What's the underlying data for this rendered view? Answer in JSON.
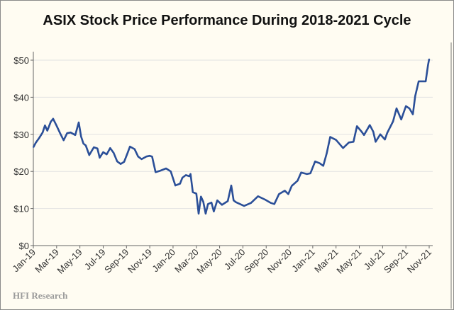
{
  "chart_data": {
    "type": "line",
    "title": "ASIX Stock Price Performance During 2018-2021 Cycle",
    "xlabel": "",
    "ylabel": "",
    "ylim": [
      0,
      50
    ],
    "yticks": [
      "$0",
      "$10",
      "$20",
      "$30",
      "$40",
      "$50"
    ],
    "ytick_values": [
      0,
      10,
      20,
      30,
      40,
      50
    ],
    "xticks": [
      "Jan-19",
      "Mar-19",
      "May-19",
      "Jul-19",
      "Sep-19",
      "Nov-19",
      "Jan-20",
      "Mar-20",
      "May-20",
      "Jul-20",
      "Sep-20",
      "Nov-20",
      "Jan-21",
      "Mar-21",
      "May-21",
      "Jul-21",
      "Sep-21",
      "Nov-21"
    ],
    "x_unit": "months since Jan-19",
    "xlim": [
      0,
      34
    ],
    "grid": "horizontal",
    "legend": "none",
    "series": [
      {
        "name": "ASIX",
        "color": "#2b4f98",
        "points": [
          [
            0,
            26.5
          ],
          [
            0.2,
            27.7
          ],
          [
            0.5,
            29
          ],
          [
            0.8,
            30.5
          ],
          [
            1.0,
            32.4
          ],
          [
            1.2,
            31
          ],
          [
            1.5,
            33.4
          ],
          [
            1.7,
            34.2
          ],
          [
            2.0,
            32.3
          ],
          [
            2.3,
            30.3
          ],
          [
            2.6,
            28.4
          ],
          [
            2.9,
            30.3
          ],
          [
            3.2,
            30.5
          ],
          [
            3.6,
            29.8
          ],
          [
            3.9,
            33.2
          ],
          [
            4.1,
            29.4
          ],
          [
            4.3,
            27.5
          ],
          [
            4.5,
            27
          ],
          [
            4.8,
            24.4
          ],
          [
            5.2,
            26.5
          ],
          [
            5.5,
            26.2
          ],
          [
            5.7,
            23.7
          ],
          [
            6.0,
            25.2
          ],
          [
            6.3,
            24.6
          ],
          [
            6.6,
            26.3
          ],
          [
            6.9,
            25
          ],
          [
            7.2,
            22.7
          ],
          [
            7.5,
            22
          ],
          [
            7.8,
            22.6
          ],
          [
            8.1,
            25
          ],
          [
            8.3,
            26.7
          ],
          [
            8.7,
            26
          ],
          [
            9.0,
            24
          ],
          [
            9.3,
            23.3
          ],
          [
            9.7,
            24
          ],
          [
            10.0,
            24.2
          ],
          [
            10.2,
            24
          ],
          [
            10.5,
            19.8
          ],
          [
            10.9,
            20.2
          ],
          [
            11.4,
            20.8
          ],
          [
            11.8,
            20
          ],
          [
            12.2,
            16.2
          ],
          [
            12.6,
            16.7
          ],
          [
            12.8,
            18.3
          ],
          [
            13.1,
            19
          ],
          [
            13.4,
            18.7
          ],
          [
            13.5,
            19.3
          ],
          [
            13.7,
            14.4
          ],
          [
            14.0,
            14
          ],
          [
            14.2,
            8.6
          ],
          [
            14.4,
            13.2
          ],
          [
            14.6,
            11.8
          ],
          [
            14.8,
            8.6
          ],
          [
            15.0,
            11.2
          ],
          [
            15.3,
            11.6
          ],
          [
            15.5,
            9.2
          ],
          [
            15.8,
            12.2
          ],
          [
            16.2,
            11
          ],
          [
            16.7,
            12
          ],
          [
            17.0,
            16.2
          ],
          [
            17.2,
            12.2
          ],
          [
            17.4,
            11.7
          ],
          [
            18.1,
            10.7
          ],
          [
            18.7,
            11.5
          ],
          [
            19.3,
            13.3
          ],
          [
            19.9,
            12.4
          ],
          [
            20.4,
            11.5
          ],
          [
            20.7,
            11.2
          ],
          [
            21.1,
            13.9
          ],
          [
            21.6,
            14.8
          ],
          [
            21.9,
            13.9
          ],
          [
            22.2,
            16.1
          ],
          [
            22.7,
            17.5
          ],
          [
            23.0,
            19.7
          ],
          [
            23.5,
            19.3
          ],
          [
            23.8,
            19.5
          ],
          [
            24.2,
            22.7
          ],
          [
            24.6,
            22.2
          ],
          [
            24.9,
            21.5
          ],
          [
            25.2,
            24.9
          ],
          [
            25.5,
            29.3
          ],
          [
            26.0,
            28.5
          ],
          [
            26.6,
            26.3
          ],
          [
            27.1,
            27.8
          ],
          [
            27.5,
            28
          ],
          [
            27.8,
            32.2
          ],
          [
            28.2,
            30.7
          ],
          [
            28.4,
            29.8
          ],
          [
            28.9,
            32.5
          ],
          [
            29.2,
            30.7
          ],
          [
            29.4,
            28
          ],
          [
            29.8,
            30
          ],
          [
            30.2,
            28.6
          ],
          [
            30.4,
            30.4
          ],
          [
            30.9,
            33.5
          ],
          [
            31.2,
            37
          ],
          [
            31.6,
            34
          ],
          [
            32.0,
            37.6
          ],
          [
            32.3,
            37
          ],
          [
            32.6,
            35.4
          ],
          [
            32.8,
            40.3
          ],
          [
            33.1,
            44.3
          ],
          [
            33.7,
            44.3
          ],
          [
            33.9,
            48.7
          ],
          [
            34.0,
            50.3
          ]
        ]
      }
    ]
  },
  "footer": "HFI Research"
}
